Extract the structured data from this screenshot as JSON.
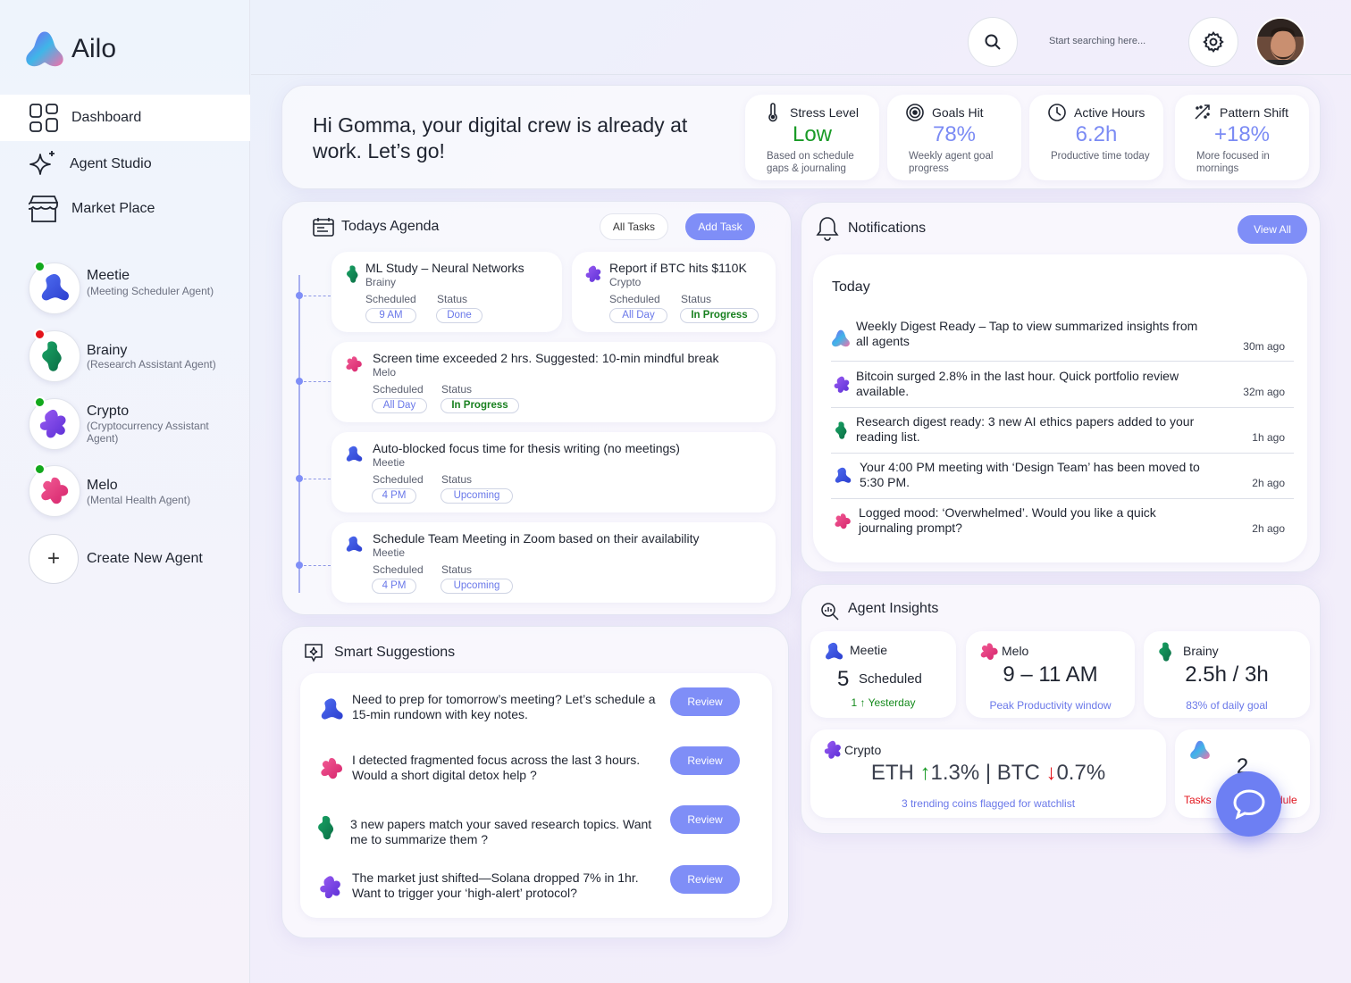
{
  "brand": {
    "name": "Ailo"
  },
  "nav": [
    {
      "label": "Dashboard",
      "icon": "grid-icon"
    },
    {
      "label": "Agent Studio",
      "icon": "sparkle-icon"
    },
    {
      "label": "Market Place",
      "icon": "storefront-icon"
    }
  ],
  "agents": [
    {
      "name": "Meetie",
      "role": "(Meeting Scheduler Agent)",
      "status": "online",
      "status_color": "#12a81c",
      "color": "#3c58e4"
    },
    {
      "name": "Brainy",
      "role": "(Research Assistant Agent)",
      "status": "offline",
      "status_color": "#e3141b",
      "color": "#11905a"
    },
    {
      "name": "Crypto",
      "role": "(Cryptocurrency Assistant Agent)",
      "status": "online",
      "status_color": "#12a81c",
      "color": "#7b3ee6"
    },
    {
      "name": "Melo",
      "role": "(Mental Health Agent)",
      "status": "online",
      "status_color": "#12a81c",
      "color": "#e6357e"
    }
  ],
  "create_agent_label": "Create New Agent",
  "search": {
    "placeholder": "Start searching here..."
  },
  "greeting": "Hi Gomma, your digital crew is already at work. Let’s go!",
  "kpis": [
    {
      "title": "Stress Level",
      "value": "Low",
      "sub": "Based on schedule gaps & journaling",
      "icon": "thermometer-icon",
      "value_color": "#1a9b27"
    },
    {
      "title": "Goals Hit",
      "value": "78%",
      "sub": "Weekly agent goal progress",
      "icon": "target-icon",
      "value_color": "#7b8bf4"
    },
    {
      "title": "Active Hours",
      "value": "6.2h",
      "sub": "Productive time today",
      "icon": "clock-icon",
      "value_color": "#7b8bf4"
    },
    {
      "title": "Pattern Shift",
      "value": "+18%",
      "sub": "More focused in mornings",
      "icon": "trend-icon",
      "value_color": "#7b8bf4"
    }
  ],
  "agenda": {
    "title": "Todays Agenda",
    "all_tasks_label": "All Tasks",
    "add_task_label": "Add Task",
    "scheduled_label": "Scheduled",
    "status_label": "Status",
    "tasks": [
      {
        "title": "ML Study – Neural Networks",
        "agent": "Brainy",
        "scheduled": "9 AM",
        "status": "Done"
      },
      {
        "title": "Report if BTC hits $110K",
        "agent": "Crypto",
        "scheduled": "All Day",
        "status": "In Progress"
      },
      {
        "title": "Screen time exceeded 2 hrs. Suggested: 10-min mindful break",
        "agent": "Melo",
        "scheduled": "All Day",
        "status": "In Progress"
      },
      {
        "title": "Auto-blocked focus time for thesis writing (no meetings)",
        "agent": "Meetie",
        "scheduled": "4 PM",
        "status": "Upcoming"
      },
      {
        "title": "Schedule Team Meeting in Zoom  based on their availability",
        "agent": "Meetie",
        "scheduled": "4 PM",
        "status": "Upcoming"
      }
    ]
  },
  "notifications": {
    "title": "Notifications",
    "view_all_label": "View All",
    "group": "Today",
    "items": [
      {
        "text": "Weekly Digest Ready – Tap to view summarized insights from all agents",
        "time": "30m ago",
        "agent": "Ailo"
      },
      {
        "text": "Bitcoin surged 2.8% in the last hour. Quick portfolio review available.",
        "time": "32m ago",
        "agent": "Crypto"
      },
      {
        "text": "Research digest ready: 3 new AI ethics papers added to your reading list.",
        "time": "1h ago",
        "agent": "Brainy"
      },
      {
        "text": "Your 4:00 PM meeting with ‘Design Team’ has been moved to 5:30 PM.",
        "time": "2h ago",
        "agent": "Meetie"
      },
      {
        "text": "Logged mood: ‘Overwhelmed’. Would you like a quick journaling prompt?",
        "time": "2h ago",
        "agent": "Melo"
      }
    ]
  },
  "suggestions": {
    "title": "Smart Suggestions",
    "review_label": "Review",
    "items": [
      {
        "text": "Need to prep for tomorrow’s meeting? Let’s schedule a 15-min rundown with key notes.",
        "agent": "Meetie"
      },
      {
        "text": "I detected fragmented focus across the last 3 hours. Would a short digital detox help ?",
        "agent": "Melo"
      },
      {
        "text": "3 new papers match your saved research topics. Want me to summarize them ?",
        "agent": "Brainy"
      },
      {
        "text": "The market just shifted—Solana dropped 7% in 1hr. Want to trigger your ‘high-alert’ protocol?",
        "agent": "Crypto"
      }
    ]
  },
  "insights": {
    "title": "Agent Insights",
    "meetie": {
      "name": "Meetie",
      "count": "5",
      "count_label": "Scheduled",
      "delta": "1 ↑ Yesterday"
    },
    "melo": {
      "name": "Melo",
      "value": "9 – 11 AM",
      "sub": "Peak Productivity window"
    },
    "brainy": {
      "name": "Brainy",
      "value": "2.5h / 3h",
      "sub": "83% of daily goal"
    },
    "crypto": {
      "name": "Crypto",
      "eth_label": "ETH",
      "eth_change": "1.3%",
      "separator": "|",
      "btc_label": "BTC",
      "btc_change": "0.7%",
      "sub": "3 trending coins flagged for watchlist"
    },
    "ailo": {
      "value": "2",
      "sub_left": "Tasks",
      "sub_right": "dule"
    }
  }
}
